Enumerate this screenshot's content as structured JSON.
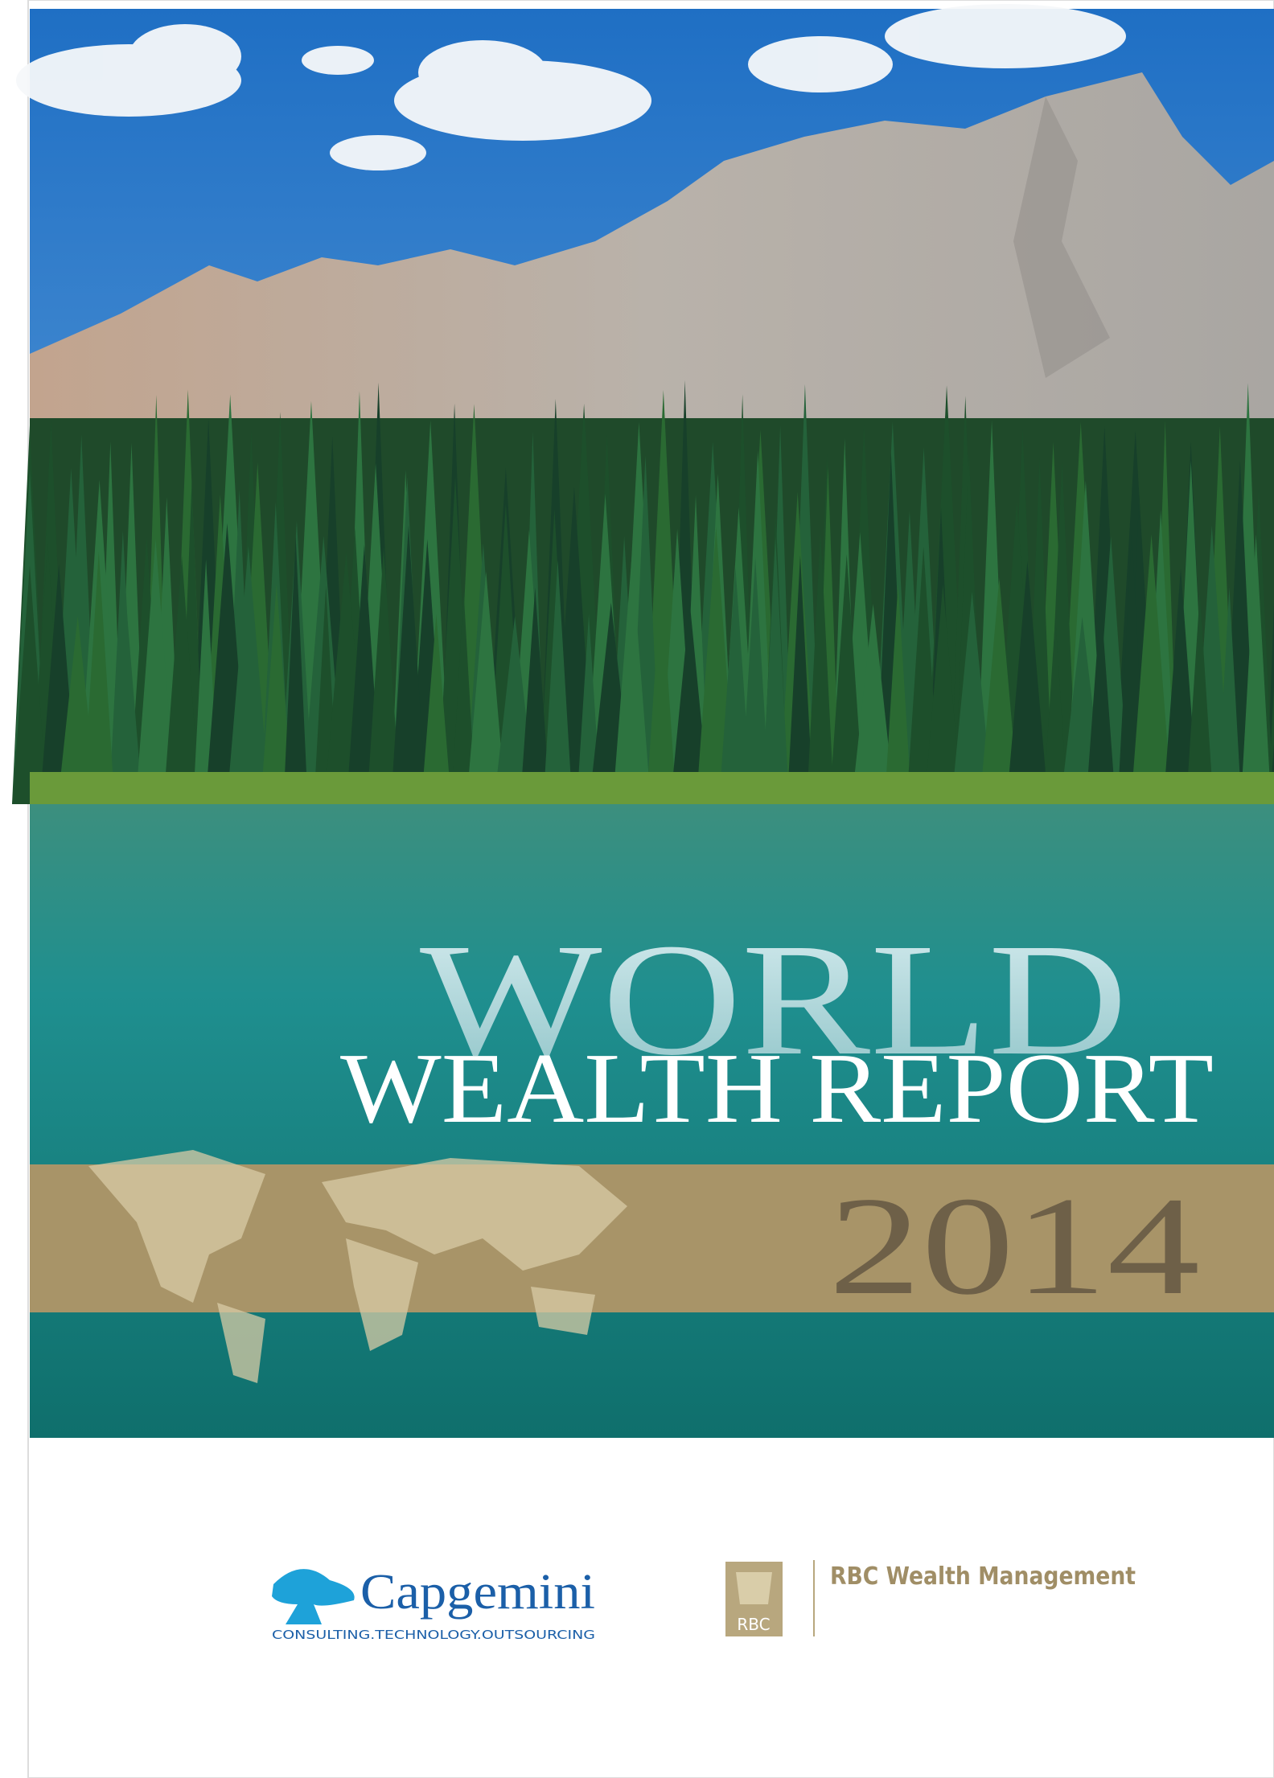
{
  "cover": {
    "title_line1": "WORLD",
    "title_line2": "WEALTH REPORT",
    "year": "2014"
  },
  "logos": {
    "capgemini": {
      "name": "Capgemini",
      "tagline": "CONSULTING.TECHNOLOGY.OUTSOURCING"
    },
    "rbc": {
      "mark": "RBC",
      "name": "RBC Wealth Management"
    }
  }
}
